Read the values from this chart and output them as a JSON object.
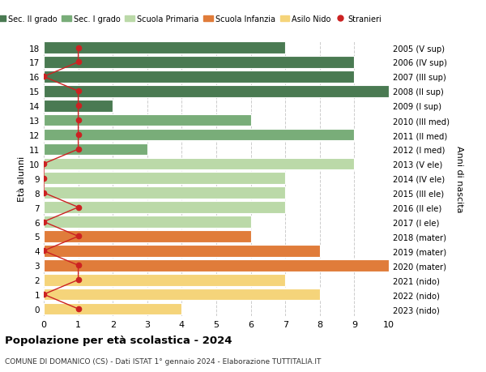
{
  "ages": [
    18,
    17,
    16,
    15,
    14,
    13,
    12,
    11,
    10,
    9,
    8,
    7,
    6,
    5,
    4,
    3,
    2,
    1,
    0
  ],
  "years": [
    "2005 (V sup)",
    "2006 (IV sup)",
    "2007 (III sup)",
    "2008 (II sup)",
    "2009 (I sup)",
    "2010 (III med)",
    "2011 (II med)",
    "2012 (I med)",
    "2013 (V ele)",
    "2014 (IV ele)",
    "2015 (III ele)",
    "2016 (II ele)",
    "2017 (I ele)",
    "2018 (mater)",
    "2019 (mater)",
    "2020 (mater)",
    "2021 (nido)",
    "2022 (nido)",
    "2023 (nido)"
  ],
  "values": [
    7,
    9,
    9,
    10,
    2,
    6,
    9,
    3,
    9,
    7,
    7,
    7,
    6,
    6,
    8,
    10,
    7,
    8,
    4
  ],
  "stranieri": [
    1,
    1,
    0,
    1,
    1,
    1,
    1,
    1,
    0,
    0,
    0,
    1,
    0,
    1,
    0,
    1,
    1,
    0,
    1
  ],
  "category_colors": [
    "#4a7a52",
    "#4a7a52",
    "#4a7a52",
    "#4a7a52",
    "#4a7a52",
    "#79ad79",
    "#79ad79",
    "#79ad79",
    "#bbd9a8",
    "#bbd9a8",
    "#bbd9a8",
    "#bbd9a8",
    "#bbd9a8",
    "#e07c3a",
    "#e07c3a",
    "#e07c3a",
    "#f5d47a",
    "#f5d47a",
    "#f5d47a"
  ],
  "stranieri_color": "#cc2222",
  "xlim": [
    0,
    10
  ],
  "title": "Popolazione per età scolastica - 2024",
  "subtitle": "COMUNE DI DOMANICO (CS) - Dati ISTAT 1° gennaio 2024 - Elaborazione TUTTITALIA.IT",
  "ylabel": "Età alunni",
  "right_label": "Anni di nascita",
  "legend_items": [
    "Sec. II grado",
    "Sec. I grado",
    "Scuola Primaria",
    "Scuola Infanzia",
    "Asilo Nido",
    "Stranieri"
  ],
  "legend_colors": [
    "#4a7a52",
    "#79ad79",
    "#bbd9a8",
    "#e07c3a",
    "#f5d47a",
    "#cc2222"
  ],
  "bg_color": "#ffffff",
  "grid_color": "#cccccc"
}
